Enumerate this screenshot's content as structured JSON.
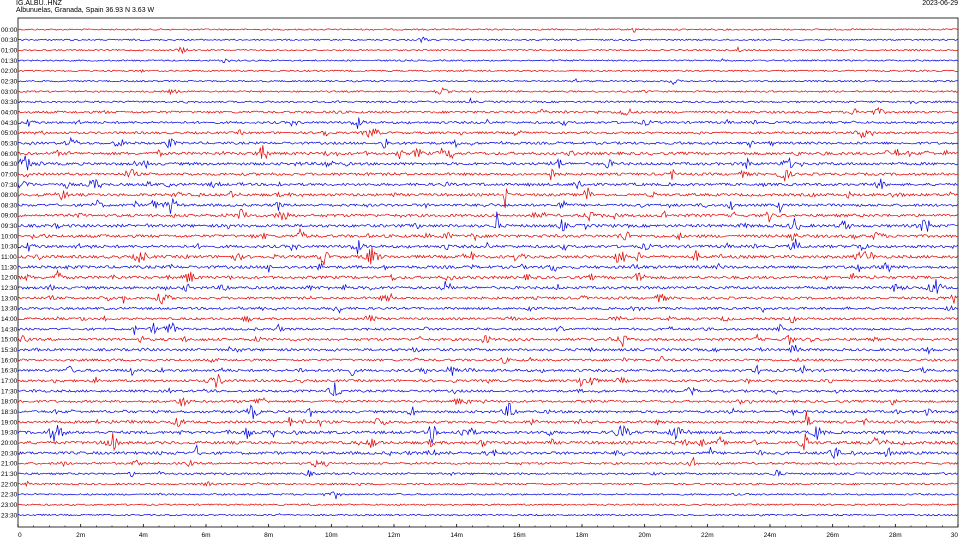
{
  "header": {
    "station": "IG.ALBU..HNZ",
    "location": "Albunuelas, Granada, Spain  36.93 N 3.63 W",
    "date": "2023-06-29"
  },
  "chart_data": {
    "type": "line",
    "title": "",
    "xlabel": "",
    "ylabel": "",
    "colors": [
      "#e00000",
      "#0000e0"
    ],
    "rows": [
      "00:00",
      "00:30",
      "01:00",
      "01:30",
      "02:00",
      "02:30",
      "03:00",
      "03:30",
      "04:00",
      "04:30",
      "05:00",
      "05:30",
      "06:00",
      "06:30",
      "07:00",
      "07:30",
      "08:00",
      "08:30",
      "09:00",
      "09:30",
      "10:00",
      "10:30",
      "11:00",
      "11:30",
      "12:00",
      "12:30",
      "13:00",
      "13:30",
      "14:00",
      "14:30",
      "15:00",
      "15:30",
      "16:00",
      "16:30",
      "17:00",
      "17:30",
      "18:00",
      "18:30",
      "19:00",
      "19:30",
      "20:00",
      "20:30",
      "21:00",
      "21:30",
      "22:00",
      "22:30",
      "23:00",
      "23:30"
    ],
    "x_ticks": [
      "0",
      "2m",
      "4m",
      "6m",
      "8m",
      "10m",
      "12m",
      "14m",
      "16m",
      "18m",
      "20m",
      "22m",
      "24m",
      "26m",
      "28m",
      "30"
    ],
    "xlim": [
      0,
      30
    ],
    "activity": [
      0.05,
      0.06,
      0.06,
      0.07,
      0.08,
      0.12,
      0.15,
      0.25,
      0.55,
      0.55,
      0.5,
      0.65,
      0.85,
      0.8,
      0.7,
      0.7,
      0.8,
      0.75,
      0.85,
      0.9,
      0.9,
      0.85,
      0.95,
      0.9,
      0.85,
      0.8,
      0.65,
      0.55,
      0.5,
      0.55,
      0.7,
      0.65,
      0.55,
      0.7,
      0.6,
      0.6,
      0.5,
      0.65,
      0.7,
      0.85,
      0.95,
      0.85,
      0.45,
      0.3,
      0.25,
      0.15,
      0.12,
      0.1
    ]
  }
}
